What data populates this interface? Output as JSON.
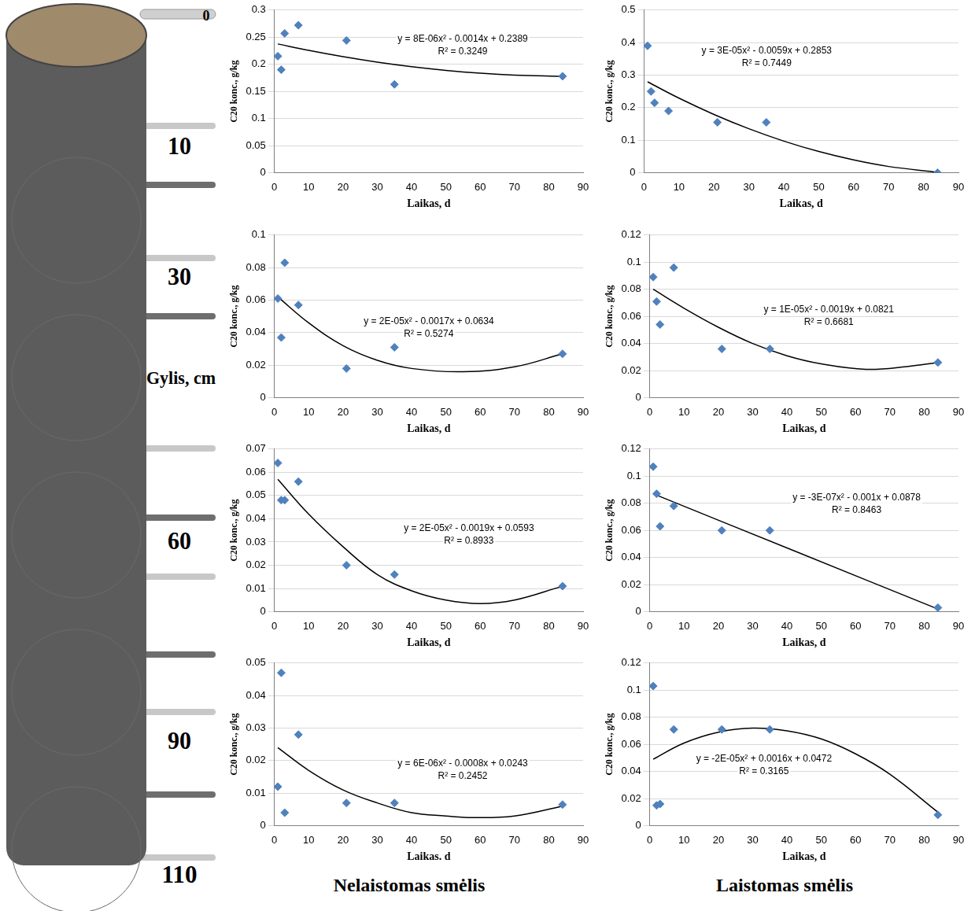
{
  "column_diagram": {
    "depth_title": "Gylis, cm",
    "depth_ticks": [
      0,
      10,
      30,
      60,
      90,
      110
    ]
  },
  "panel_titles": [
    "Nelaistomas smėlis",
    "Laistomas smėlis"
  ],
  "chart_data": [
    {
      "type": "scatter",
      "x_label": "Laikas, d",
      "y_label": "C20 konc., g/kg",
      "xlim": [
        0,
        90
      ],
      "xticks": [
        0,
        10,
        20,
        30,
        40,
        50,
        60,
        70,
        80,
        90
      ],
      "ylim": [
        0,
        0.3
      ],
      "yticks": [
        0,
        0.05,
        0.1,
        0.15,
        0.2,
        0.25,
        0.3
      ],
      "grid": "y",
      "annotations": [
        "y = 8E-06x² - 0.0014x + 0.2389",
        "R² = 0.3249"
      ],
      "series": [
        {
          "type": "scatter",
          "color": "#4f81bd",
          "marker": "diamond",
          "x": [
            1,
            2,
            3,
            7,
            21,
            35,
            84
          ],
          "values": [
            0.215,
            0.19,
            0.257,
            0.272,
            0.244,
            0.163,
            0.178
          ]
        },
        {
          "type": "line",
          "color": "#000000",
          "line_style": "solid",
          "x": [
            1,
            10,
            20,
            30,
            40,
            50,
            60,
            70,
            84
          ],
          "values": [
            0.2375,
            0.2257,
            0.2141,
            0.2041,
            0.1957,
            0.1889,
            0.1837,
            0.1801,
            0.1777
          ]
        }
      ]
    },
    {
      "type": "scatter",
      "x_label": "Laikas, d",
      "y_label": "C20 konc., g/kg",
      "xlim": [
        0,
        90
      ],
      "xticks": [
        0,
        10,
        20,
        30,
        40,
        50,
        60,
        70,
        80,
        90
      ],
      "ylim": [
        0,
        0.5
      ],
      "yticks": [
        0,
        0.1,
        0.2,
        0.3,
        0.4,
        0.5
      ],
      "grid": "y",
      "annotations": [
        "y = 3E-05x² - 0.0059x + 0.2853",
        "R² = 0.7449"
      ],
      "series": [
        {
          "type": "scatter",
          "color": "#4f81bd",
          "marker": "diamond",
          "x": [
            1,
            2,
            3,
            7,
            21,
            35,
            84
          ],
          "values": [
            0.39,
            0.25,
            0.215,
            0.19,
            0.155,
            0.155,
            0
          ]
        },
        {
          "type": "line",
          "color": "#000000",
          "line_style": "solid",
          "x": [
            1,
            10,
            20,
            30,
            40,
            50,
            60,
            70,
            84
          ],
          "values": [
            0.2794,
            0.2293,
            0.1793,
            0.1353,
            0.0973,
            0.0653,
            0.0393,
            0.0193,
            0.0017
          ]
        }
      ]
    },
    {
      "type": "scatter",
      "x_label": "Laikas, d",
      "y_label": "C20 konc., g/kg",
      "xlim": [
        0,
        90
      ],
      "xticks": [
        0,
        10,
        20,
        30,
        40,
        50,
        60,
        70,
        80,
        90
      ],
      "ylim": [
        0,
        0.1
      ],
      "yticks": [
        0,
        0.02,
        0.04,
        0.06,
        0.08,
        0.1
      ],
      "grid": "y",
      "annotations": [
        "y = 2E-05x² - 0.0017x + 0.0634",
        "R² = 0.5274"
      ],
      "series": [
        {
          "type": "scatter",
          "color": "#4f81bd",
          "marker": "diamond",
          "x": [
            1,
            2,
            3,
            7,
            21,
            35,
            84
          ],
          "values": [
            0.061,
            0.037,
            0.083,
            0.057,
            0.018,
            0.031,
            0.027
          ]
        },
        {
          "type": "line",
          "color": "#000000",
          "line_style": "solid",
          "x": [
            1,
            10,
            20,
            30,
            40,
            55,
            70,
            84
          ],
          "values": [
            0.062,
            0.046,
            0.032,
            0.023,
            0.018,
            0.016,
            0.019,
            0.027
          ]
        }
      ]
    },
    {
      "type": "scatter",
      "x_label": "Laikas, d",
      "y_label": "C20 konc., g/kg",
      "xlim": [
        0,
        90
      ],
      "xticks": [
        0,
        10,
        20,
        30,
        40,
        50,
        60,
        70,
        80,
        90
      ],
      "ylim": [
        0,
        0.12
      ],
      "yticks": [
        0,
        0.02,
        0.04,
        0.06,
        0.08,
        0.1,
        0.12
      ],
      "grid": "y",
      "annotations": [
        "y = 1E-05x² - 0.0019x + 0.0821",
        "R² = 0.6681"
      ],
      "series": [
        {
          "type": "scatter",
          "color": "#4f81bd",
          "marker": "diamond",
          "x": [
            1,
            2,
            3,
            7,
            21,
            35,
            84
          ],
          "values": [
            0.089,
            0.071,
            0.054,
            0.096,
            0.036,
            0.036,
            0.026
          ]
        },
        {
          "type": "line",
          "color": "#000000",
          "line_style": "solid",
          "x": [
            1,
            10,
            20,
            30,
            40,
            50,
            63,
            75,
            84
          ],
          "values": [
            0.08,
            0.066,
            0.052,
            0.04,
            0.031,
            0.025,
            0.021,
            0.023,
            0.026
          ]
        }
      ]
    },
    {
      "type": "scatter",
      "x_label": "Laikas, d",
      "y_label": "C20 konc., g/kg",
      "xlim": [
        0,
        90
      ],
      "xticks": [
        0,
        10,
        20,
        30,
        40,
        50,
        60,
        70,
        80,
        90
      ],
      "ylim": [
        0,
        0.07
      ],
      "yticks": [
        0,
        0.01,
        0.02,
        0.03,
        0.04,
        0.05,
        0.06,
        0.07
      ],
      "grid": "y",
      "annotations": [
        "y = 2E-05x² - 0.0019x + 0.0593",
        "R² = 0.8933"
      ],
      "series": [
        {
          "type": "scatter",
          "color": "#4f81bd",
          "marker": "diamond",
          "x": [
            1,
            2,
            3,
            7,
            21,
            35,
            84
          ],
          "values": [
            0.064,
            0.048,
            0.048,
            0.056,
            0.02,
            0.016,
            0.011
          ]
        },
        {
          "type": "line",
          "color": "#000000",
          "line_style": "solid",
          "x": [
            1,
            10,
            20,
            30,
            40,
            50,
            60,
            70,
            84
          ],
          "values": [
            0.057,
            0.042,
            0.028,
            0.016,
            0.009,
            0.005,
            0.0035,
            0.005,
            0.011
          ]
        }
      ]
    },
    {
      "type": "scatter",
      "x_label": "Laikas, d",
      "y_label": "C20 konc., g/kg",
      "xlim": [
        0,
        90
      ],
      "xticks": [
        0,
        10,
        20,
        30,
        40,
        50,
        60,
        70,
        80,
        90
      ],
      "ylim": [
        0,
        0.12
      ],
      "yticks": [
        0,
        0.02,
        0.04,
        0.06,
        0.08,
        0.1,
        0.12
      ],
      "grid": "y",
      "annotations": [
        "y = -3E-07x² - 0.001x + 0.0878",
        "R² = 0.8463"
      ],
      "series": [
        {
          "type": "scatter",
          "color": "#4f81bd",
          "marker": "diamond",
          "x": [
            1,
            2,
            3,
            7,
            21,
            35,
            84
          ],
          "values": [
            0.107,
            0.087,
            0.063,
            0.078,
            0.06,
            0.06,
            0.003
          ]
        },
        {
          "type": "line",
          "color": "#000000",
          "line_style": "solid",
          "x": [
            1,
            42,
            84
          ],
          "values": [
            0.087,
            0.045,
            0.002
          ]
        }
      ]
    },
    {
      "type": "scatter",
      "x_label": "Laikas. d",
      "y_label": "C20 konc., g/kg",
      "xlim": [
        0,
        90
      ],
      "xticks": [
        0,
        10,
        20,
        30,
        40,
        50,
        60,
        70,
        80,
        90
      ],
      "ylim": [
        0,
        0.05
      ],
      "yticks": [
        0,
        0.01,
        0.02,
        0.03,
        0.04,
        0.05
      ],
      "grid": "y",
      "annotations": [
        "y = 6E-06x² - 0.0008x + 0.0243",
        "R² = 0.2452"
      ],
      "series": [
        {
          "type": "scatter",
          "color": "#4f81bd",
          "marker": "diamond",
          "x": [
            1,
            2,
            3,
            7,
            21,
            35,
            84
          ],
          "values": [
            0.012,
            0.047,
            0.004,
            0.028,
            0.007,
            0.007,
            0.0065
          ]
        },
        {
          "type": "line",
          "color": "#000000",
          "line_style": "solid",
          "x": [
            1,
            10,
            20,
            30,
            40,
            50,
            58,
            70,
            84
          ],
          "values": [
            0.024,
            0.017,
            0.011,
            0.007,
            0.004,
            0.003,
            0.0025,
            0.003,
            0.006
          ]
        }
      ]
    },
    {
      "type": "scatter",
      "x_label": "Laikas, d",
      "y_label": "C20 konc., g/kg",
      "xlim": [
        0,
        90
      ],
      "xticks": [
        0,
        10,
        20,
        30,
        40,
        50,
        60,
        70,
        80,
        90
      ],
      "ylim": [
        0,
        0.12
      ],
      "yticks": [
        0,
        0.02,
        0.04,
        0.06,
        0.08,
        0.1,
        0.12
      ],
      "grid": "y",
      "annotations": [
        "y = -2E-05x² + 0.0016x + 0.0472",
        "R² = 0.3165"
      ],
      "series": [
        {
          "type": "scatter",
          "color": "#4f81bd",
          "marker": "diamond",
          "x": [
            1,
            2,
            3,
            7,
            21,
            35,
            84
          ],
          "values": [
            0.103,
            0.015,
            0.016,
            0.071,
            0.071,
            0.071,
            0.008
          ]
        },
        {
          "type": "line",
          "color": "#000000",
          "line_style": "solid",
          "x": [
            1,
            10,
            20,
            30,
            40,
            50,
            60,
            70,
            84
          ],
          "values": [
            0.049,
            0.061,
            0.069,
            0.072,
            0.07,
            0.064,
            0.053,
            0.038,
            0.01
          ]
        }
      ]
    }
  ]
}
